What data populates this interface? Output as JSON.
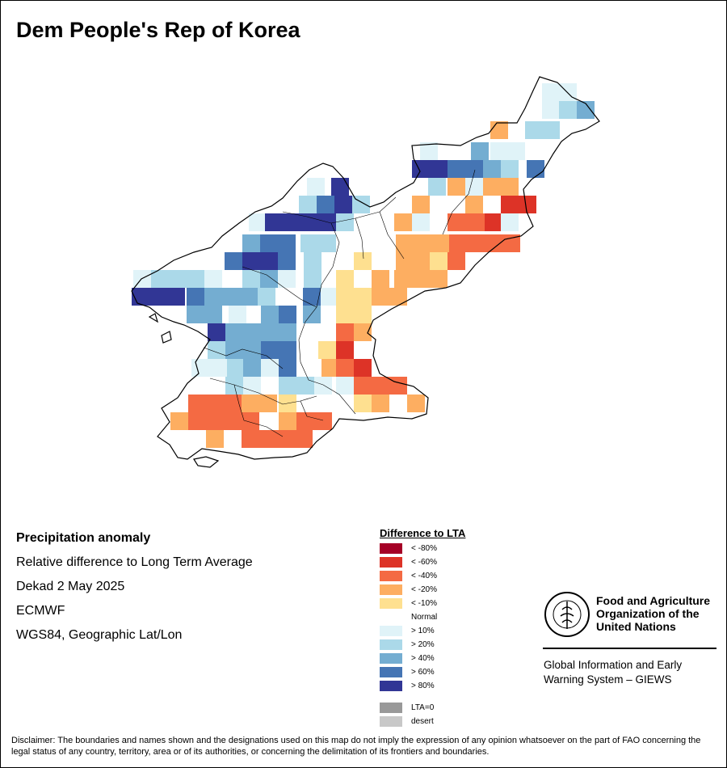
{
  "map": {
    "title": "Dem People's Rep of Korea",
    "info": {
      "heading": "Precipitation anomaly",
      "line1": "Relative difference to Long Term Average",
      "line2": "Dekad 2 May 2025",
      "line3": "ECMWF",
      "line4": "WGS84, Geographic Lat/Lon"
    },
    "legend": {
      "title": "Difference to LTA",
      "classes": [
        {
          "key": "m80",
          "label": "< -80%",
          "color": "#a50026"
        },
        {
          "key": "m60",
          "label": "< -60%",
          "color": "#dd3327"
        },
        {
          "key": "m40",
          "label": "< -40%",
          "color": "#f46a43"
        },
        {
          "key": "m20",
          "label": "< -20%",
          "color": "#fdae61"
        },
        {
          "key": "m10",
          "label": "< -10%",
          "color": "#fee090"
        },
        {
          "key": "n",
          "label": "Normal",
          "color": "#ffffff"
        },
        {
          "key": "p10",
          "label": "> 10%",
          "color": "#e0f3f8"
        },
        {
          "key": "p20",
          "label": "> 20%",
          "color": "#abd9e9"
        },
        {
          "key": "p40",
          "label": "> 40%",
          "color": "#74add1"
        },
        {
          "key": "p60",
          "label": "> 60%",
          "color": "#4575b4"
        },
        {
          "key": "p80",
          "label": "> 80%",
          "color": "#313695"
        },
        {
          "key": "lta0",
          "label": "LTA=0",
          "color": "#999999"
        },
        {
          "key": "desert",
          "label": "desert",
          "color": "#c8c8c8"
        }
      ]
    },
    "grid_cells": [
      [
        "p10",
        671,
        103
      ],
      [
        "p10",
        692,
        103
      ],
      [
        "p10",
        671,
        125
      ],
      [
        "p20",
        692,
        125
      ],
      [
        "p40",
        714,
        125
      ],
      [
        "m20",
        607,
        150
      ],
      [
        "p20",
        650,
        150
      ],
      [
        "p20",
        671,
        150
      ],
      [
        "p10",
        520,
        176
      ],
      [
        "p40",
        583,
        176
      ],
      [
        "p10",
        607,
        176
      ],
      [
        "p10",
        628,
        176
      ],
      [
        "p80",
        510,
        198
      ],
      [
        "p80",
        532,
        198
      ],
      [
        "p60",
        554,
        198
      ],
      [
        "p60",
        576,
        198
      ],
      [
        "p40",
        598,
        198
      ],
      [
        "p20",
        620,
        198
      ],
      [
        "p60",
        652,
        198
      ],
      [
        "p10",
        380,
        220
      ],
      [
        "p80",
        410,
        220
      ],
      [
        "p20",
        530,
        220
      ],
      [
        "m20",
        554,
        220
      ],
      [
        "p10",
        576,
        220
      ],
      [
        "m20",
        598,
        220
      ],
      [
        "m20",
        620,
        220
      ],
      [
        "p20",
        370,
        242
      ],
      [
        "p60",
        392,
        242
      ],
      [
        "p80",
        414,
        242
      ],
      [
        "p20",
        436,
        242
      ],
      [
        "m20",
        510,
        242
      ],
      [
        "m20",
        576,
        242
      ],
      [
        "m60",
        620,
        242
      ],
      [
        "m60",
        642,
        242
      ],
      [
        "p10",
        308,
        264
      ],
      [
        "p80",
        328,
        264
      ],
      [
        "p80",
        350,
        264
      ],
      [
        "p80",
        372,
        264
      ],
      [
        "p80",
        394,
        264
      ],
      [
        "p20",
        416,
        264
      ],
      [
        "m20",
        488,
        264
      ],
      [
        "p10",
        510,
        264
      ],
      [
        "m40",
        554,
        264
      ],
      [
        "m40",
        576,
        264
      ],
      [
        "m40",
        598,
        264
      ],
      [
        "m60",
        600,
        264
      ],
      [
        "p10",
        620,
        264
      ],
      [
        "p40",
        300,
        290
      ],
      [
        "p60",
        322,
        290
      ],
      [
        "p60",
        344,
        290
      ],
      [
        "p20",
        372,
        290
      ],
      [
        "p20",
        394,
        290
      ],
      [
        "m20",
        490,
        290
      ],
      [
        "m20",
        512,
        290
      ],
      [
        "m20",
        534,
        290
      ],
      [
        "m40",
        556,
        290
      ],
      [
        "m40",
        578,
        290
      ],
      [
        "m40",
        600,
        290
      ],
      [
        "m40",
        622,
        290
      ],
      [
        "p60",
        278,
        312
      ],
      [
        "p80",
        300,
        312
      ],
      [
        "p80",
        322,
        312
      ],
      [
        "p60",
        344,
        312
      ],
      [
        "p20",
        376,
        312
      ],
      [
        "m10",
        438,
        312
      ],
      [
        "m20",
        490,
        312
      ],
      [
        "m20",
        512,
        312
      ],
      [
        "m10",
        532,
        312
      ],
      [
        "m40",
        554,
        312
      ],
      [
        "p10",
        165,
        334
      ],
      [
        "p20",
        187,
        334
      ],
      [
        "p20",
        209,
        334
      ],
      [
        "p20",
        231,
        334
      ],
      [
        "p10",
        253,
        334
      ],
      [
        "p20",
        300,
        334
      ],
      [
        "p40",
        322,
        334
      ],
      [
        "p10",
        344,
        334
      ],
      [
        "p20",
        376,
        334
      ],
      [
        "m10",
        416,
        334
      ],
      [
        "m20",
        460,
        334
      ],
      [
        "m20",
        488,
        334
      ],
      [
        "m20",
        510,
        334
      ],
      [
        "m20",
        532,
        334
      ],
      [
        "p80",
        163,
        356
      ],
      [
        "p80",
        185,
        356
      ],
      [
        "p80",
        207,
        356
      ],
      [
        "p60",
        231,
        356
      ],
      [
        "p40",
        253,
        356
      ],
      [
        "p40",
        275,
        356
      ],
      [
        "p40",
        297,
        356
      ],
      [
        "p20",
        319,
        356
      ],
      [
        "p60",
        375,
        356
      ],
      [
        "p10",
        397,
        356
      ],
      [
        "m10",
        416,
        356
      ],
      [
        "m10",
        438,
        356
      ],
      [
        "m20",
        460,
        356
      ],
      [
        "m20",
        482,
        356
      ],
      [
        "p40",
        231,
        378
      ],
      [
        "p40",
        253,
        378
      ],
      [
        "p10",
        283,
        378
      ],
      [
        "p40",
        323,
        378
      ],
      [
        "p60",
        345,
        378
      ],
      [
        "p40",
        375,
        378
      ],
      [
        "m10",
        416,
        378
      ],
      [
        "m10",
        438,
        378
      ],
      [
        "p80",
        257,
        400
      ],
      [
        "p40",
        279,
        400
      ],
      [
        "p40",
        301,
        400
      ],
      [
        "p40",
        323,
        400
      ],
      [
        "p40",
        345,
        400
      ],
      [
        "m40",
        416,
        400
      ],
      [
        "m20",
        438,
        400
      ],
      [
        "p20",
        257,
        422
      ],
      [
        "p40",
        279,
        422
      ],
      [
        "p40",
        301,
        422
      ],
      [
        "p60",
        323,
        422
      ],
      [
        "p60",
        345,
        422
      ],
      [
        "m10",
        394,
        422
      ],
      [
        "m60",
        416,
        422
      ],
      [
        "p10",
        237,
        444
      ],
      [
        "p10",
        259,
        444
      ],
      [
        "p20",
        281,
        444
      ],
      [
        "p40",
        301,
        444
      ],
      [
        "p10",
        323,
        444
      ],
      [
        "p60",
        345,
        444
      ],
      [
        "m20",
        398,
        444
      ],
      [
        "m40",
        416,
        444
      ],
      [
        "m60",
        438,
        444
      ],
      [
        "p20",
        279,
        466
      ],
      [
        "p10",
        301,
        466
      ],
      [
        "p20",
        345,
        466
      ],
      [
        "p20",
        367,
        466
      ],
      [
        "p10",
        389,
        466
      ],
      [
        "p10",
        416,
        466
      ],
      [
        "m40",
        438,
        466
      ],
      [
        "m40",
        460,
        466
      ],
      [
        "m40",
        482,
        466
      ],
      [
        "m40",
        233,
        488
      ],
      [
        "m40",
        255,
        488
      ],
      [
        "m40",
        277,
        488
      ],
      [
        "m20",
        299,
        488
      ],
      [
        "m20",
        321,
        488
      ],
      [
        "m10",
        345,
        488
      ],
      [
        "m10",
        438,
        488
      ],
      [
        "m20",
        460,
        488
      ],
      [
        "m20",
        504,
        488
      ],
      [
        "m20",
        211,
        510
      ],
      [
        "m40",
        233,
        510
      ],
      [
        "m40",
        255,
        510
      ],
      [
        "m40",
        277,
        510
      ],
      [
        "m40",
        299,
        510
      ],
      [
        "m20",
        345,
        510
      ],
      [
        "m40",
        367,
        510
      ],
      [
        "m40",
        389,
        510
      ],
      [
        "m20",
        255,
        532
      ],
      [
        "m40",
        299,
        532
      ],
      [
        "m40",
        321,
        532
      ],
      [
        "m40",
        343,
        532
      ],
      [
        "m40",
        365,
        532
      ]
    ]
  }
}
